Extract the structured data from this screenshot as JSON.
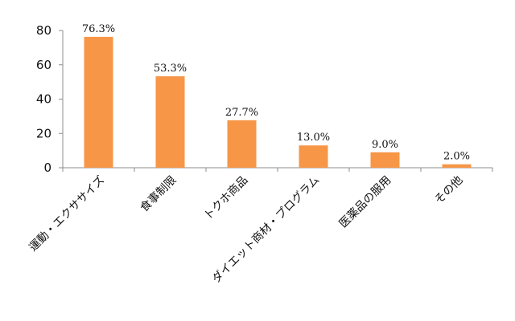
{
  "chart_data": {
    "type": "bar",
    "title": "",
    "xlabel": "",
    "ylabel": "",
    "ylim": [
      0,
      80
    ],
    "y_ticks": [
      0,
      20,
      40,
      60,
      80
    ],
    "grid": false,
    "legend": "none",
    "bar_color": "#f79646",
    "categories": [
      "運動・エクササイズ",
      "食事制限",
      "トクホ商品",
      "ダイエット商材・プログラム",
      "医薬品の服用",
      "その他"
    ],
    "values": [
      76.3,
      53.3,
      27.7,
      13.0,
      9.0,
      2.0
    ],
    "value_labels": [
      "76.3%",
      "53.3%",
      "27.7%",
      "13.0%",
      "9.0%",
      "2.0%"
    ]
  }
}
